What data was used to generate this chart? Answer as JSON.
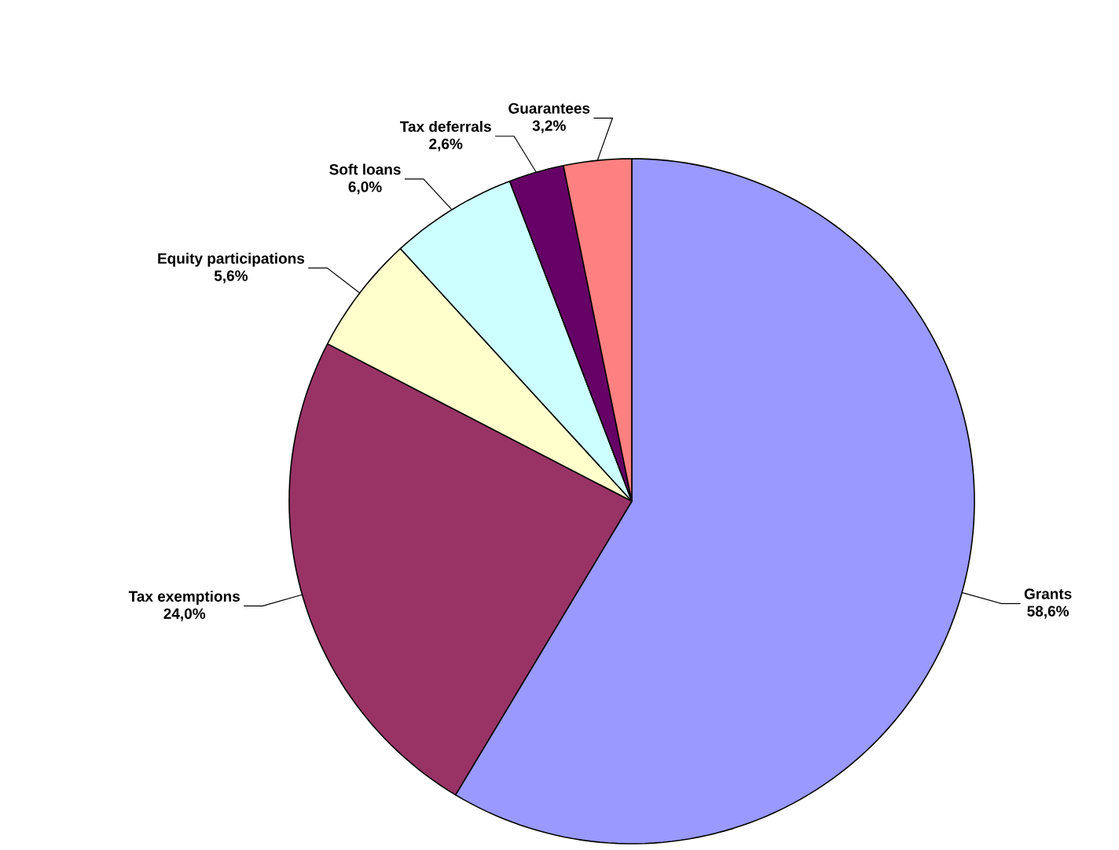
{
  "chart_data": {
    "type": "pie",
    "categories": [
      "Grants",
      "Tax exemptions",
      "Equity participations",
      "Soft loans",
      "Tax deferrals",
      "Guarantees"
    ],
    "values": [
      58.6,
      24.0,
      5.6,
      6.0,
      2.6,
      3.2
    ],
    "value_labels": [
      "58,6%",
      "24,0%",
      "5,6%",
      "6,0%",
      "2,6%",
      "3,2%"
    ],
    "colors": [
      "#9999ff",
      "#993366",
      "#ffffcc",
      "#ccffff",
      "#660066",
      "#ff8080"
    ]
  }
}
